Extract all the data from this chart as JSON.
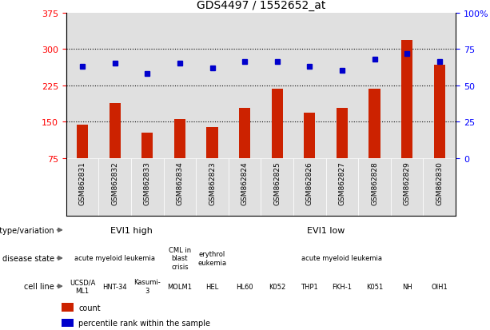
{
  "title": "GDS4497 / 1552652_at",
  "samples": [
    "GSM862831",
    "GSM862832",
    "GSM862833",
    "GSM862834",
    "GSM862823",
    "GSM862824",
    "GSM862825",
    "GSM862826",
    "GSM862827",
    "GSM862828",
    "GSM862829",
    "GSM862830"
  ],
  "counts": [
    143,
    188,
    127,
    155,
    138,
    178,
    218,
    168,
    178,
    218,
    318,
    268
  ],
  "percentiles": [
    63,
    65,
    58,
    65,
    62,
    66,
    66,
    63,
    60,
    68,
    72,
    66
  ],
  "ylim_left": [
    75,
    375
  ],
  "ylim_right": [
    0,
    100
  ],
  "yticks_left": [
    75,
    150,
    225,
    300,
    375
  ],
  "yticks_right": [
    0,
    25,
    50,
    75,
    100
  ],
  "bar_color": "#cc2200",
  "dot_color": "#0000cc",
  "chart_bg": "#e0e0e0",
  "fig_bg": "#ffffff",
  "genotype_color": "#77cc66",
  "disease_color_main": "#9988cc",
  "disease_color_cml": "#6688cc",
  "disease_color_ery": "#9988cc",
  "cell_color_left": "#cc9999",
  "cell_color_right": "#dd9999",
  "label_area_bg": "#ffffff",
  "genotype_groups": [
    {
      "label": "EVI1 high",
      "start": 0,
      "end": 3
    },
    {
      "label": "EVI1 low",
      "start": 4,
      "end": 11
    }
  ],
  "disease_groups": [
    {
      "label": "acute myeloid leukemia",
      "start": 0,
      "end": 2
    },
    {
      "label": "CML in\nblast\ncrisis",
      "start": 3,
      "end": 3
    },
    {
      "label": "erythrol\neukemia",
      "start": 4,
      "end": 4
    },
    {
      "label": "acute myeloid leukemia",
      "start": 5,
      "end": 11
    }
  ],
  "cell_groups": [
    {
      "label": "UCSD/A\nML1",
      "start": 0,
      "end": 0,
      "color": "left"
    },
    {
      "label": "HNT-34",
      "start": 1,
      "end": 1,
      "color": "left"
    },
    {
      "label": "Kasumi-\n3",
      "start": 2,
      "end": 2,
      "color": "left"
    },
    {
      "label": "MOLM1",
      "start": 3,
      "end": 3,
      "color": "left"
    },
    {
      "label": "HEL",
      "start": 4,
      "end": 4,
      "color": "right"
    },
    {
      "label": "HL60",
      "start": 5,
      "end": 5,
      "color": "right"
    },
    {
      "label": "K052",
      "start": 6,
      "end": 6,
      "color": "right"
    },
    {
      "label": "THP1",
      "start": 7,
      "end": 7,
      "color": "right"
    },
    {
      "label": "FKH-1",
      "start": 8,
      "end": 8,
      "color": "right"
    },
    {
      "label": "K051",
      "start": 9,
      "end": 9,
      "color": "right"
    },
    {
      "label": "NH",
      "start": 10,
      "end": 10,
      "color": "right"
    },
    {
      "label": "OIH1",
      "start": 11,
      "end": 11,
      "color": "right"
    }
  ]
}
